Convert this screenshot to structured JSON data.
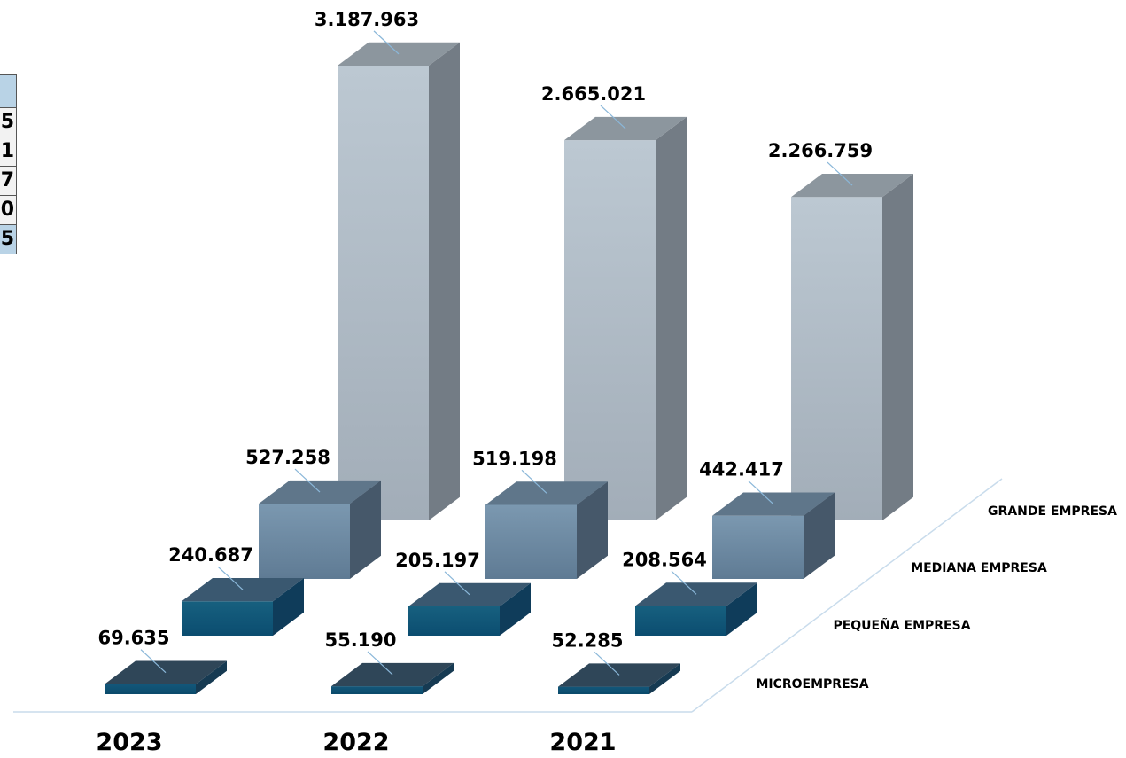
{
  "left_table": {
    "rows": [
      {
        "kind": "hdr",
        "text": ""
      },
      {
        "kind": "row",
        "text": "5"
      },
      {
        "kind": "row",
        "text": "1"
      },
      {
        "kind": "row",
        "text": "7"
      },
      {
        "kind": "row",
        "text": "0"
      },
      {
        "kind": "tot",
        "text": "5"
      }
    ]
  },
  "chart_data": {
    "type": "bar",
    "categories": [
      "2023",
      "2022",
      "2021"
    ],
    "series": [
      {
        "name": "MICROEMPRESA",
        "values": [
          69635,
          55190,
          52285
        ],
        "labels": [
          "69.635",
          "55.190",
          "52.285"
        ],
        "color": "#0c4f72"
      },
      {
        "name": "PEQUEÑA EMPRESA",
        "values": [
          240687,
          205197,
          208564
        ],
        "labels": [
          "240.687",
          "205.197",
          "208.564"
        ],
        "color": "#0d5b80"
      },
      {
        "name": "MEDIANA EMPRESA",
        "values": [
          527258,
          519198,
          442417
        ],
        "labels": [
          "527.258",
          "519.198",
          "442.417"
        ],
        "color": "#6f8da6"
      },
      {
        "name": "GRANDE EMPRESA",
        "values": [
          3187963,
          2665021,
          2266759
        ],
        "labels": [
          "3.187.963",
          "2.665.021",
          "2.266.759"
        ],
        "color": "#b2bec8"
      }
    ],
    "three_d": true,
    "grid": false,
    "legend": "series labels along depth axis, right"
  }
}
